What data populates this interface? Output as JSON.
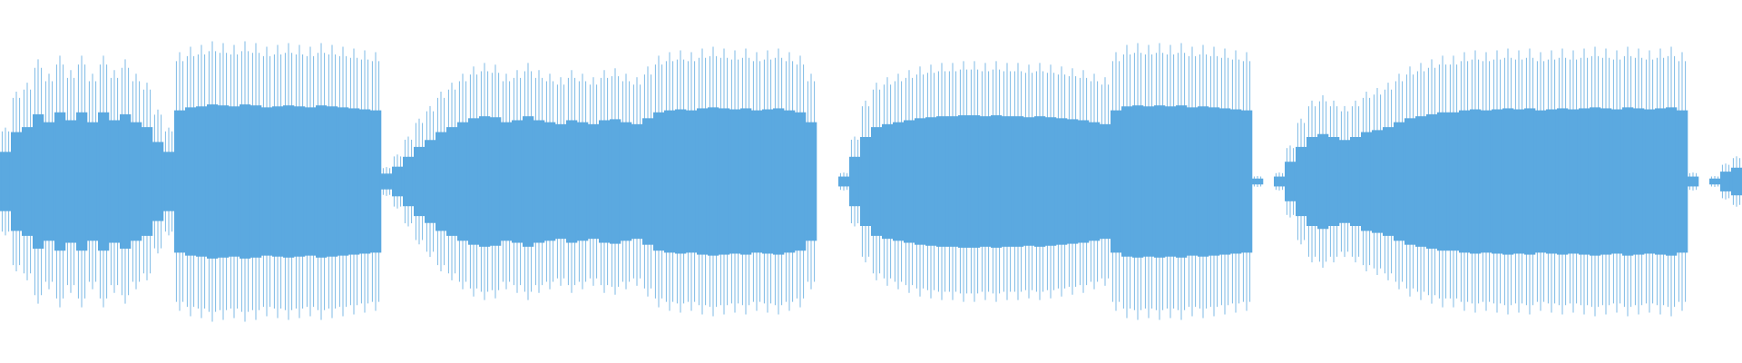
{
  "chart_data": {
    "type": "waveform",
    "color": "#5ba9e0",
    "ylim": [
      -1,
      1
    ],
    "values": [
      0.3,
      0.5,
      0.55,
      0.68,
      0.6,
      0.7,
      0.62,
      0.7,
      0.6,
      0.7,
      0.62,
      0.68,
      0.6,
      0.55,
      0.4,
      0.3,
      0.72,
      0.75,
      0.76,
      0.78,
      0.77,
      0.76,
      0.78,
      0.77,
      0.75,
      0.76,
      0.77,
      0.76,
      0.75,
      0.77,
      0.76,
      0.75,
      0.74,
      0.73,
      0.72,
      0.08,
      0.15,
      0.25,
      0.35,
      0.42,
      0.5,
      0.55,
      0.6,
      0.64,
      0.66,
      0.65,
      0.6,
      0.62,
      0.66,
      0.62,
      0.6,
      0.58,
      0.62,
      0.6,
      0.58,
      0.62,
      0.63,
      0.6,
      0.58,
      0.64,
      0.7,
      0.72,
      0.73,
      0.72,
      0.74,
      0.75,
      0.74,
      0.73,
      0.74,
      0.72,
      0.73,
      0.74,
      0.72,
      0.7,
      0.6,
      null,
      null,
      0.05,
      0.25,
      0.45,
      0.55,
      0.58,
      0.6,
      0.62,
      0.64,
      0.65,
      0.66,
      0.66,
      0.67,
      0.67,
      0.66,
      0.67,
      0.66,
      0.66,
      0.65,
      0.66,
      0.65,
      0.64,
      0.63,
      0.62,
      0.6,
      0.58,
      0.72,
      0.76,
      0.77,
      0.76,
      0.77,
      0.76,
      0.77,
      0.75,
      0.76,
      0.75,
      0.74,
      0.73,
      0.72,
      0.03,
      null,
      0.05,
      0.2,
      0.35,
      0.45,
      0.48,
      0.45,
      0.42,
      0.45,
      0.5,
      0.52,
      0.55,
      0.6,
      0.64,
      0.66,
      0.68,
      0.7,
      0.7,
      0.72,
      0.73,
      0.72,
      0.73,
      0.74,
      0.73,
      0.74,
      0.72,
      0.73,
      0.74,
      0.73,
      0.74,
      0.75,
      0.74,
      0.73,
      0.75,
      0.74,
      0.73,
      0.74,
      0.75,
      0.72,
      0.05,
      null,
      0.03,
      0.1,
      0.14
    ]
  }
}
